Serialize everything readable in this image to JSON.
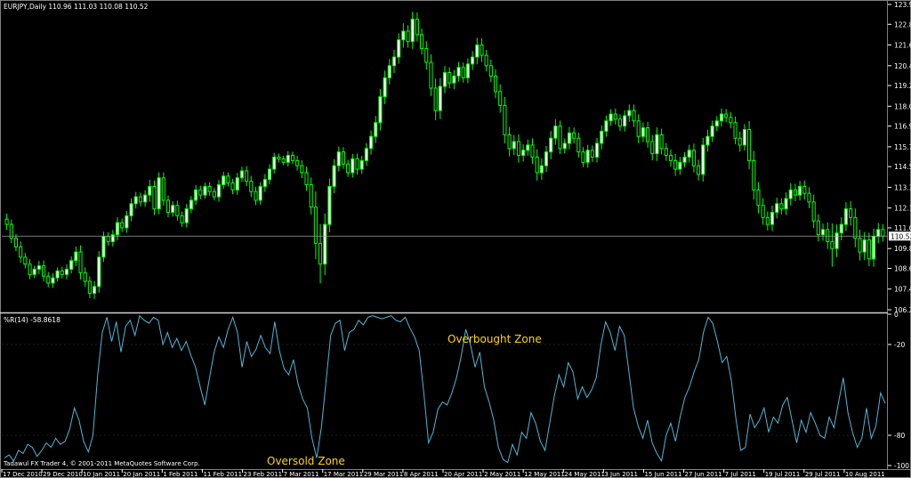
{
  "header": {
    "symbol_info": "EURJPY,Daily  110.96 111.03 110.08 110.52",
    "indicator_info": "%R(14) -58.8618"
  },
  "annotations": {
    "overbought": "Overbought Zone",
    "oversold": "Oversold Zone"
  },
  "footer": {
    "copyright": "Tadawul FX Trader 4, © 2001-2011 MetaQuotes Software Corp."
  },
  "colors": {
    "background": "#000000",
    "candle": "#00ff00",
    "candle_body": "#ffffff",
    "grid": "#3a3a3a",
    "axis_text": "#ffffff",
    "indicator_line": "#4fb6d6",
    "annotation_text": "#ffd700"
  },
  "chart_data": [
    {
      "type": "candlestick",
      "title": "EURJPY,Daily",
      "ylim": [
        106.25,
        123.95
      ],
      "y_ticks": [
        "123.95",
        "122.80",
        "121.60",
        "120.40",
        "119.25",
        "118.05",
        "116.90",
        "115.70",
        "114.55",
        "113.35",
        "112.15",
        "111.00",
        "109.80",
        "108.65",
        "107.45",
        "106.25"
      ],
      "current_price": "110.52",
      "x_ticks": [
        "17 Dec 2010",
        "29 Dec 2010",
        "10 Jan 2011",
        "20 Jan 2011",
        "1 Feb 2011",
        "11 Feb 2011",
        "23 Feb 2011",
        "7 Mar 2011",
        "17 Mar 2011",
        "29 Mar 2011",
        "8 Apr 2011",
        "20 Apr 2011",
        "2 May 2011",
        "12 May 2011",
        "24 May 2011",
        "3 Jun 2011",
        "15 Jun 2011",
        "27 Jun 2011",
        "7 Jul 2011",
        "19 Jul 2011",
        "29 Jul 2011",
        "10 Aug 2011"
      ],
      "close": [
        111.2,
        110.4,
        109.9,
        109.3,
        108.9,
        108.3,
        108.6,
        108.8,
        108.2,
        107.8,
        108.1,
        108.5,
        108.3,
        108.6,
        109.1,
        109.6,
        108.4,
        107.9,
        107.2,
        107.6,
        109.3,
        110.5,
        110.2,
        110.6,
        111.3,
        111.0,
        111.7,
        112.4,
        112.8,
        112.5,
        112.9,
        113.4,
        112.1,
        113.9,
        112.6,
        111.9,
        112.3,
        111.7,
        111.3,
        112.1,
        112.6,
        113.2,
        112.9,
        113.4,
        113.1,
        112.8,
        113.5,
        114.0,
        113.6,
        113.2,
        113.9,
        114.3,
        113.7,
        113.1,
        112.6,
        113.4,
        113.8,
        114.4,
        115.1,
        115.0,
        114.8,
        115.2,
        114.9,
        114.6,
        114.2,
        113.5,
        112.2,
        110.1,
        108.9,
        111.2,
        113.4,
        114.6,
        115.4,
        114.7,
        114.2,
        115.0,
        114.4,
        114.9,
        115.6,
        116.3,
        117.1,
        118.6,
        119.7,
        120.4,
        120.9,
        121.9,
        122.4,
        121.8,
        123.1,
        122.2,
        121.4,
        120.6,
        119.1,
        117.8,
        119.2,
        120.0,
        119.4,
        119.8,
        120.3,
        119.7,
        120.5,
        120.9,
        121.6,
        121.0,
        120.4,
        119.8,
        118.9,
        118.1,
        116.4,
        115.6,
        116.0,
        115.2,
        115.5,
        115.8,
        115.1,
        114.2,
        114.6,
        115.4,
        116.2,
        116.9,
        115.6,
        115.9,
        116.5,
        116.2,
        115.4,
        114.8,
        115.5,
        115.1,
        115.9,
        116.6,
        117.2,
        117.6,
        117.3,
        116.9,
        117.5,
        117.8,
        117.2,
        116.3,
        116.8,
        116.0,
        115.3,
        116.4,
        115.6,
        115.2,
        114.9,
        114.4,
        114.8,
        115.1,
        115.5,
        114.6,
        114.1,
        115.8,
        116.3,
        116.9,
        117.2,
        117.6,
        117.4,
        117.1,
        116.2,
        115.8,
        116.7,
        114.9,
        113.2,
        112.3,
        111.6,
        111.2,
        111.9,
        112.4,
        112.1,
        112.7,
        113.2,
        112.9,
        113.4,
        113.0,
        112.5,
        111.4,
        110.6,
        110.9,
        110.2,
        109.8,
        110.7,
        111.2,
        112.1,
        111.6,
        110.4,
        109.6,
        110.3,
        109.2,
        110.5,
        110.9,
        110.52
      ],
      "range": [
        0.9,
        0.8,
        0.7,
        0.9,
        0.7,
        0.8,
        0.6,
        0.8,
        0.9,
        0.7,
        0.8,
        0.6,
        0.7,
        0.8,
        0.7,
        0.9,
        1.1,
        0.9,
        0.8,
        0.9,
        1.0,
        0.8,
        0.7,
        0.8,
        0.9,
        0.7,
        0.8,
        0.9,
        0.8,
        0.7,
        0.8,
        1.1,
        1.0,
        0.9,
        0.9,
        0.8,
        0.7,
        0.8,
        0.7,
        0.8,
        0.7,
        0.8,
        0.7,
        0.6,
        0.7,
        0.6,
        0.8,
        0.7,
        0.6,
        0.7,
        0.8,
        0.7,
        0.8,
        0.9,
        0.8,
        0.7,
        0.9,
        0.8,
        0.7,
        0.6,
        0.5,
        0.7,
        0.6,
        0.8,
        0.9,
        1.0,
        1.2,
        2.6,
        3.2,
        1.8,
        1.3,
        1.1,
        0.9,
        0.8,
        0.7,
        0.8,
        0.9,
        0.8,
        0.9,
        1.0,
        1.1,
        1.3,
        1.2,
        1.1,
        1.2,
        1.1,
        1.3,
        1.0,
        1.2,
        1.1,
        1.0,
        1.2,
        1.3,
        1.6,
        1.4,
        1.1,
        0.9,
        1.0,
        0.9,
        0.8,
        0.9,
        1.0,
        1.2,
        1.1,
        0.9,
        1.0,
        1.1,
        1.2,
        1.4,
        1.3,
        1.1,
        1.2,
        1.0,
        0.9,
        1.1,
        1.3,
        1.2,
        1.0,
        1.2,
        1.1,
        0.9,
        0.8,
        1.0,
        0.9,
        0.9,
        0.8,
        0.9,
        0.8,
        0.9,
        1.0,
        0.9,
        0.8,
        0.9,
        0.8,
        0.9,
        1.0,
        1.0,
        1.1,
        0.9,
        1.0,
        1.1,
        1.2,
        1.0,
        0.9,
        1.0,
        1.1,
        0.9,
        0.8,
        0.9,
        1.1,
        1.0,
        1.2,
        1.1,
        0.9,
        0.8,
        0.9,
        0.8,
        0.9,
        1.0,
        1.1,
        0.9,
        1.4,
        1.6,
        1.3,
        1.2,
        1.0,
        1.1,
        1.0,
        0.9,
        1.0,
        1.1,
        1.0,
        0.9,
        1.0,
        1.0,
        1.2,
        1.1,
        1.0,
        1.2,
        3.0,
        1.4,
        1.2,
        1.1,
        1.3,
        1.5,
        1.4,
        1.3,
        1.2,
        1.3,
        1.1,
        0.9
      ]
    },
    {
      "type": "line",
      "title": "%R(14)",
      "ylim": [
        -100,
        0
      ],
      "y_ticks": [
        0,
        -20,
        -80,
        -100
      ],
      "current_value": -58.8618,
      "values": [
        -95,
        -93,
        -97,
        -90,
        -92,
        -86,
        -88,
        -94,
        -90,
        -85,
        -88,
        -82,
        -86,
        -84,
        -76,
        -62,
        -70,
        -84,
        -91,
        -80,
        -40,
        -12,
        -2,
        -18,
        -5,
        -25,
        -8,
        -4,
        -14,
        -1,
        -4,
        -6,
        -2,
        -4,
        -20,
        -12,
        -22,
        -16,
        -24,
        -18,
        -27,
        -35,
        -48,
        -60,
        -42,
        -25,
        -15,
        -22,
        -10,
        -2,
        -12,
        -35,
        -18,
        -28,
        -23,
        -14,
        -22,
        -26,
        -5,
        -24,
        -36,
        -40,
        -30,
        -46,
        -56,
        -62,
        -82,
        -95,
        -75,
        -45,
        -14,
        -6,
        -4,
        -24,
        -12,
        -10,
        -4,
        -7,
        -2,
        -1,
        -2,
        -3,
        -2,
        -1,
        -4,
        -5,
        -2,
        -9,
        -15,
        -24,
        -52,
        -85,
        -78,
        -63,
        -58,
        -60,
        -52,
        -42,
        -28,
        -10,
        -20,
        -35,
        -25,
        -48,
        -58,
        -70,
        -88,
        -96,
        -98,
        -86,
        -93,
        -78,
        -82,
        -65,
        -72,
        -84,
        -90,
        -72,
        -54,
        -40,
        -48,
        -32,
        -38,
        -56,
        -48,
        -55,
        -50,
        -42,
        -20,
        -5,
        -12,
        -24,
        -8,
        -14,
        -38,
        -62,
        -74,
        -82,
        -70,
        -85,
        -92,
        -97,
        -80,
        -72,
        -84,
        -68,
        -55,
        -48,
        -38,
        -30,
        -12,
        -2,
        -6,
        -18,
        -32,
        -28,
        -44,
        -70,
        -90,
        -88,
        -66,
        -75,
        -70,
        -62,
        -78,
        -68,
        -72,
        -60,
        -55,
        -70,
        -85,
        -70,
        -78,
        -65,
        -72,
        -80,
        -82,
        -68,
        -75,
        -58,
        -42,
        -65,
        -78,
        -88,
        -82,
        -62,
        -82,
        -74,
        -52,
        -58.86
      ]
    }
  ]
}
